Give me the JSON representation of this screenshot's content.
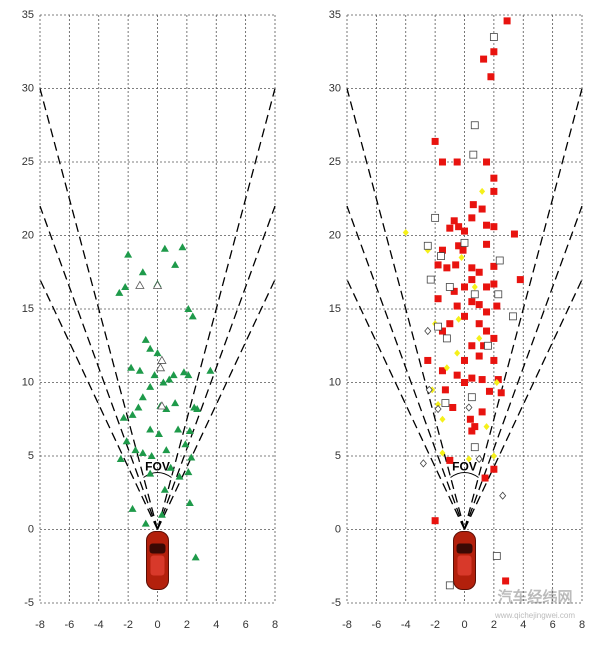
{
  "chart_data": [
    {
      "type": "scatter",
      "annotation": "FOV",
      "xlim": [
        -8,
        8
      ],
      "ylim": [
        -5,
        35
      ],
      "xticks": [
        -8,
        -6,
        -4,
        -2,
        0,
        2,
        4,
        6,
        8
      ],
      "yticks": [
        -5,
        0,
        5,
        10,
        15,
        20,
        25,
        30,
        35
      ],
      "grid": true,
      "fov_lines": [
        {
          "x": [
            0,
            -8
          ],
          "y": [
            0,
            30
          ]
        },
        {
          "x": [
            0,
            -8
          ],
          "y": [
            0,
            22
          ]
        },
        {
          "x": [
            0,
            -8
          ],
          "y": [
            0,
            17
          ]
        },
        {
          "x": [
            0,
            8
          ],
          "y": [
            0,
            30
          ]
        },
        {
          "x": [
            0,
            8
          ],
          "y": [
            0,
            22
          ]
        },
        {
          "x": [
            0,
            8
          ],
          "y": [
            0,
            17
          ]
        }
      ],
      "series": [
        {
          "marker": "triangle",
          "color": "#1e9a4a",
          "filled": true,
          "x": [
            -2,
            -1,
            -2.2,
            -2.6,
            0,
            0.5,
            1.2,
            1.7,
            2.1,
            2.4,
            -1.8,
            -1.2,
            -0.8,
            -0.5,
            0,
            -0.2,
            0.4,
            0.8,
            1.1,
            1.8,
            2.1,
            3.6,
            -1,
            -0.5,
            0.2,
            0.6,
            1.2,
            2.5,
            2.2,
            -1.3,
            -1.7,
            -2.3,
            -2.5,
            -1.5,
            -1,
            -0.5,
            0.1,
            0.6,
            1.4,
            1.9,
            2.3,
            2.1,
            1.5,
            0.5,
            -0.5,
            -1.7,
            -0.8,
            2.2,
            2.6,
            0.3,
            2.7,
            -2.1,
            0.9,
            -0.4
          ],
          "y": [
            18.7,
            17.5,
            16.5,
            16.1,
            16.7,
            19.1,
            18,
            19.2,
            15,
            14.5,
            11,
            10.8,
            12.9,
            12.3,
            12,
            10.5,
            10,
            10.2,
            10.5,
            10.7,
            10.5,
            10.8,
            9,
            9.7,
            8.4,
            8.2,
            8.6,
            8.3,
            6.7,
            8.3,
            7.8,
            7.6,
            4.8,
            5.4,
            5.2,
            6.8,
            6.5,
            5.4,
            6.8,
            5.8,
            4.9,
            3.9,
            3.6,
            2.7,
            3.8,
            1.4,
            0.4,
            1.8,
            -1.9,
            1,
            8.2,
            6,
            4.2,
            5
          ]
        },
        {
          "marker": "triangle",
          "color": "#555555",
          "filled": false,
          "x": [
            -1.2,
            0,
            0.3,
            0.2,
            0.3
          ],
          "y": [
            16.6,
            16.6,
            11.5,
            11,
            8.4
          ]
        }
      ]
    },
    {
      "type": "scatter",
      "annotation": "FOV",
      "xlim": [
        -8,
        8
      ],
      "ylim": [
        -5,
        35
      ],
      "xticks": [
        -8,
        -6,
        -4,
        -2,
        0,
        2,
        4,
        6,
        8
      ],
      "yticks": [
        -5,
        0,
        5,
        10,
        15,
        20,
        25,
        30,
        35
      ],
      "grid": true,
      "fov_lines": [
        {
          "x": [
            0,
            -8
          ],
          "y": [
            0,
            30
          ]
        },
        {
          "x": [
            0,
            -8
          ],
          "y": [
            0,
            22
          ]
        },
        {
          "x": [
            0,
            -8
          ],
          "y": [
            0,
            17
          ]
        },
        {
          "x": [
            0,
            8
          ],
          "y": [
            0,
            30
          ]
        },
        {
          "x": [
            0,
            8
          ],
          "y": [
            0,
            22
          ]
        },
        {
          "x": [
            0,
            8
          ],
          "y": [
            0,
            17
          ]
        }
      ],
      "series": [
        {
          "marker": "square",
          "color": "#e8130f",
          "filled": true,
          "x": [
            2.9,
            2,
            1.3,
            1.8,
            -2,
            -1.5,
            -0.5,
            1.5,
            2,
            2,
            0.6,
            1.2,
            -0.7,
            -0.4,
            -1,
            0,
            0.5,
            1.5,
            2,
            3.4,
            -1.5,
            -0.4,
            -0.1,
            1.5,
            -1.8,
            -1.2,
            -0.6,
            0.5,
            1,
            2,
            -0.7,
            0,
            0.5,
            1.5,
            2,
            3.8,
            -1.8,
            -0.5,
            0.5,
            1,
            1.5,
            2.2,
            -1,
            0,
            1,
            1.5,
            2,
            -1.5,
            0.5,
            1.3,
            -2.5,
            0,
            1,
            2,
            -1.5,
            -0.5,
            0.5,
            1.2,
            2.3,
            -1.3,
            0,
            1.7,
            2.5,
            -0.8,
            0.4,
            0.5,
            0.7,
            1.2,
            -1,
            2,
            -2,
            2.8,
            1.4
          ],
          "y": [
            34.6,
            32.5,
            32,
            30.8,
            26.4,
            25,
            25,
            25,
            23.9,
            23,
            22.1,
            21.8,
            21,
            20.6,
            20.5,
            20.3,
            21.2,
            20.7,
            20.6,
            20.1,
            19,
            19.3,
            19,
            19.4,
            18,
            17.8,
            18,
            17.8,
            17.5,
            17.9,
            16.2,
            16.5,
            17,
            16.5,
            16.7,
            17,
            15.7,
            15.2,
            15.5,
            15.3,
            14.8,
            15.2,
            14,
            14.5,
            14,
            13.5,
            13,
            13.5,
            12.5,
            12.5,
            11.5,
            11.5,
            11.8,
            11.5,
            10.8,
            10.5,
            10.3,
            10.2,
            10.2,
            9.5,
            10,
            9.4,
            9.3,
            8.3,
            7.5,
            6.7,
            7,
            8,
            4.7,
            4.1,
            0.6,
            -3.5,
            3.5
          ]
        },
        {
          "marker": "diamond",
          "color": "#f5f01a",
          "filled": true,
          "x": [
            -4,
            1.2,
            -2.5,
            -0.2,
            0.7,
            -2,
            -0.4,
            1,
            -2.2,
            -1.8,
            -1.5,
            -1.2,
            0.5,
            2,
            -1.5,
            0.3,
            2.2,
            -0.5,
            1.5
          ],
          "y": [
            20.2,
            23,
            19,
            18.5,
            16.5,
            14,
            14.3,
            13,
            9.5,
            8.5,
            7.5,
            11,
            9,
            5,
            5.2,
            4.8,
            10,
            12,
            7
          ]
        },
        {
          "marker": "square",
          "color": "#444444",
          "filled": false,
          "x": [
            2,
            0.7,
            0.6,
            -2,
            -2.5,
            0,
            -1.6,
            2.4,
            -2.3,
            -1,
            0.7,
            2.3,
            3.3,
            -1.8,
            -1.2,
            1.6,
            0.5,
            0.7,
            -1.3,
            2.2,
            -1
          ],
          "y": [
            33.5,
            27.5,
            25.5,
            21.2,
            19.3,
            19.5,
            18.6,
            18.3,
            17,
            16.5,
            16,
            16,
            14.5,
            13.8,
            13,
            12.5,
            9,
            5.6,
            8.6,
            -1.8,
            -3.8
          ]
        },
        {
          "marker": "diamond",
          "color": "#444444",
          "filled": false,
          "x": [
            -2.5,
            -2.4,
            -1.8,
            0.3,
            2.6,
            1,
            -2.8
          ],
          "y": [
            13.5,
            9.5,
            8.2,
            8.3,
            2.3,
            4.8,
            4.5
          ]
        }
      ]
    }
  ],
  "watermark": {
    "title": "汽车经纬网",
    "url": "www.qichejingwei.com"
  }
}
